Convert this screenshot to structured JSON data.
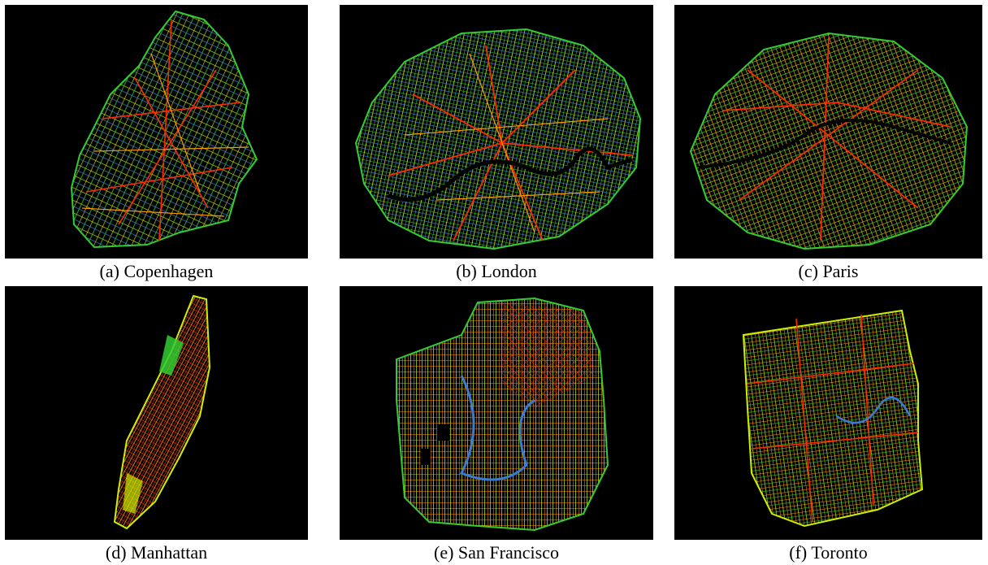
{
  "figure": {
    "panels": [
      {
        "id": "a",
        "caption": "(a) Copenhagen",
        "city": "Copenhagen"
      },
      {
        "id": "b",
        "caption": "(b) London",
        "city": "London"
      },
      {
        "id": "c",
        "caption": "(c) Paris",
        "city": "Paris"
      },
      {
        "id": "d",
        "caption": "(d) Manhattan",
        "city": "Manhattan"
      },
      {
        "id": "e",
        "caption": "(e) San Francisco",
        "city": "San Francisco"
      },
      {
        "id": "f",
        "caption": "(f) Toronto",
        "city": "Toronto"
      }
    ],
    "colors": {
      "background": "#000000",
      "low": "#3a7bd5",
      "mid_low": "#33cc33",
      "mid": "#ccee00",
      "mid_high": "#ff9900",
      "high": "#ff2a00"
    }
  }
}
